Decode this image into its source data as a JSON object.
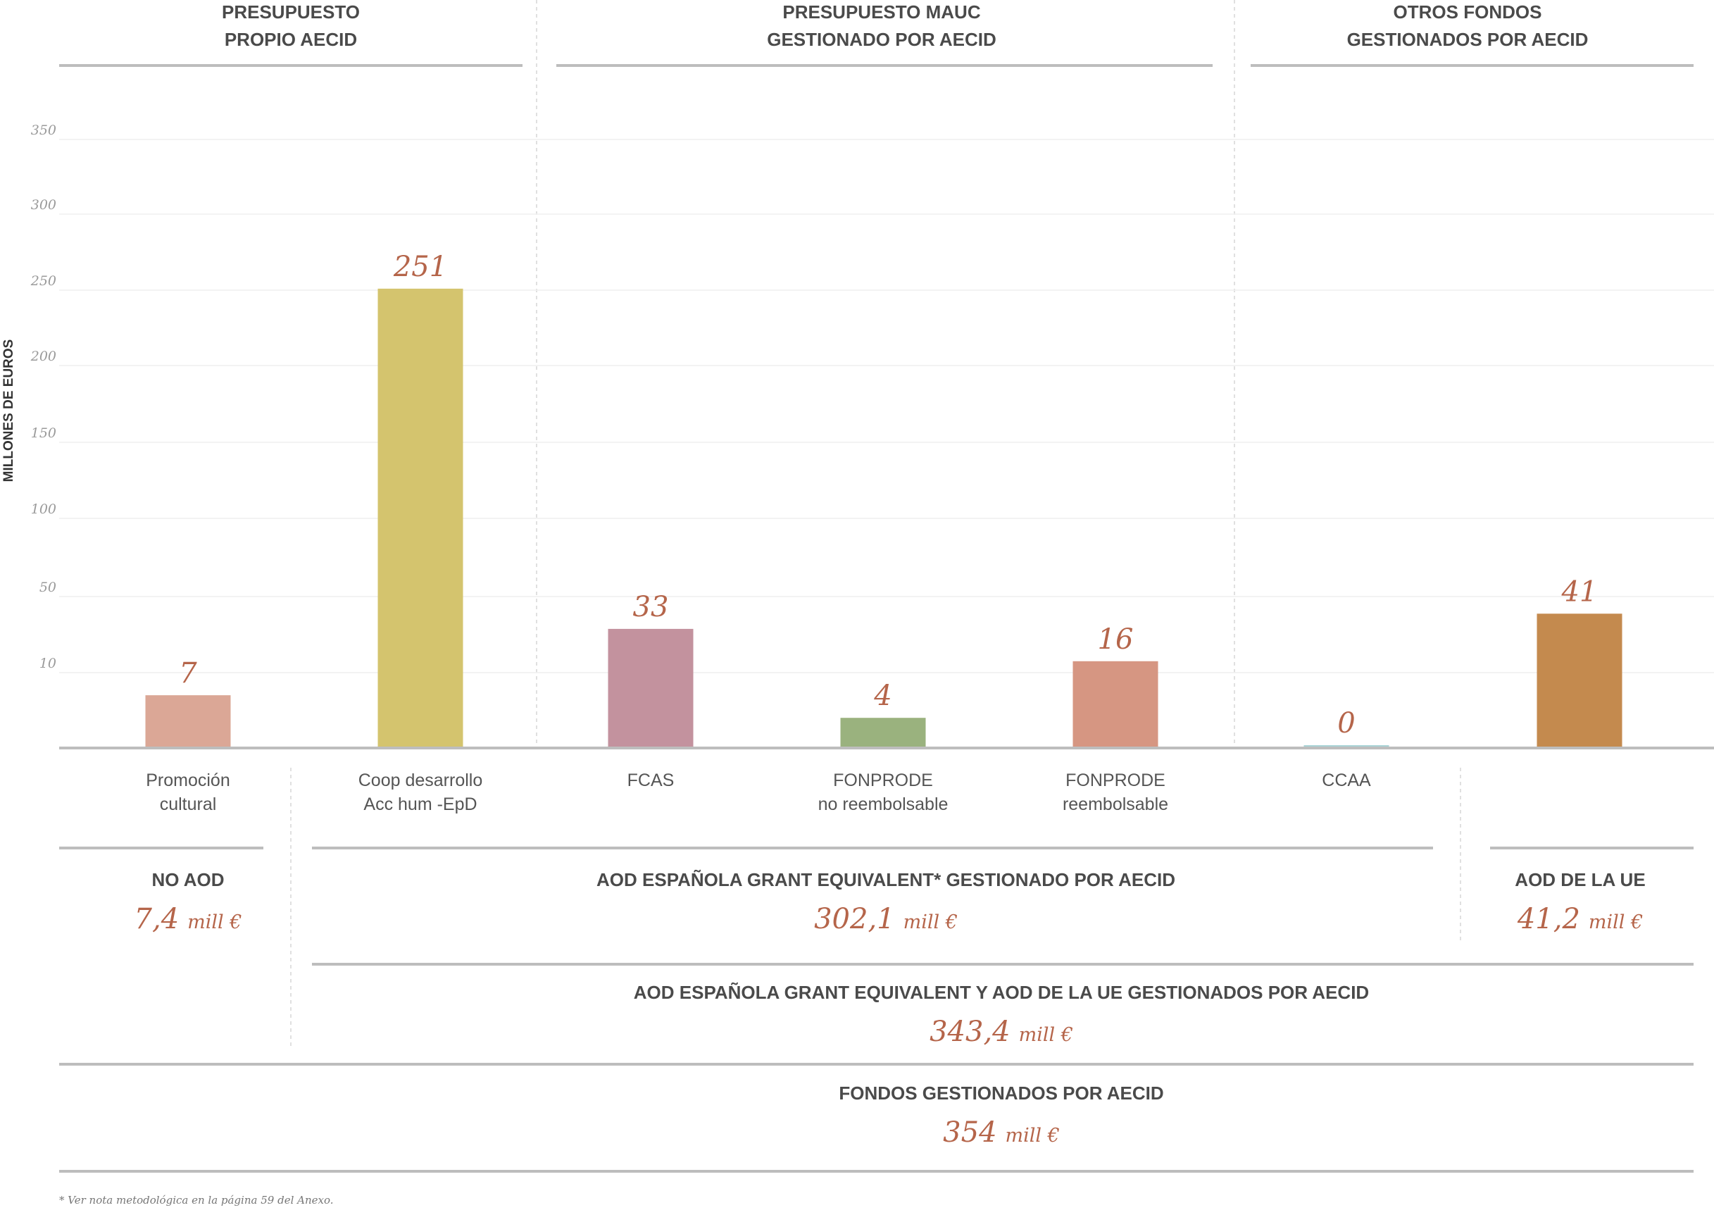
{
  "section_headers": [
    {
      "lines": [
        "PRESUPUESTO",
        "PROPIO AECID"
      ]
    },
    {
      "lines": [
        "PRESUPUESTO MAUC",
        "GESTIONADO POR AECID"
      ]
    },
    {
      "lines": [
        "OTROS FONDOS",
        "GESTIONADOS POR AECID"
      ]
    }
  ],
  "chart_data": {
    "type": "bar",
    "ylabel": "MILLONES DE EUROS",
    "y_ticks": [
      10,
      50,
      100,
      150,
      200,
      250,
      300,
      350
    ],
    "categories": [
      [
        "Promoción",
        "cultural"
      ],
      [
        "Coop desarrollo",
        "Acc hum -EpD"
      ],
      [
        "FCAS"
      ],
      [
        "FONPRODE",
        "no reembolsable"
      ],
      [
        "FONPRODE",
        "reembolsable"
      ],
      [
        "CCAA"
      ],
      []
    ],
    "values": [
      7,
      251,
      33,
      4,
      16,
      0,
      41
    ],
    "value_labels": [
      "7",
      "251",
      "33",
      "4",
      "16",
      "0",
      "41"
    ],
    "colors": [
      "#dba796",
      "#d4c46e",
      "#c3929e",
      "#9ab27e",
      "#d69682",
      "#a9d3d6",
      "#c48a4e"
    ],
    "grid": true
  },
  "summary": {
    "no_aod": {
      "title": "NO AOD",
      "value": "7,4",
      "unit": "mill €"
    },
    "aod_espanola": {
      "title": "AOD ESPAÑOLA GRANT EQUIVALENT* GESTIONADO POR AECID",
      "value": "302,1",
      "unit": "mill €"
    },
    "aod_ue": {
      "title": "AOD DE LA UE",
      "value": "41,2",
      "unit": "mill €"
    },
    "aod_total": {
      "title": "AOD ESPAÑOLA GRANT EQUIVALENT Y AOD DE LA UE GESTIONADOS POR AECID",
      "value": "343,4",
      "unit": "mill €"
    },
    "fondos": {
      "title": "FONDOS GESTIONADOS POR AECID",
      "value": "354",
      "unit": "mill €"
    }
  },
  "footnote": "* Ver nota metodológica en la página 59 del Anexo."
}
